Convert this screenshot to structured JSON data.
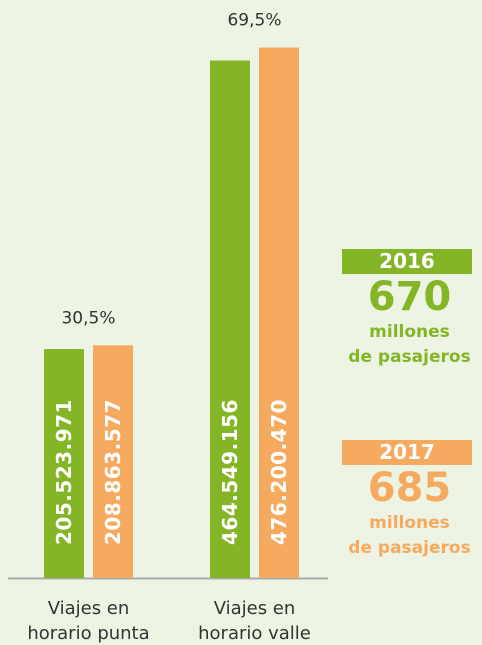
{
  "chart_data": {
    "type": "bar",
    "categories": [
      "Viajes en horario punta",
      "Viajes en horario valle"
    ],
    "group_labels": [
      "30,5%",
      "69,5%"
    ],
    "series": [
      {
        "name": "2016",
        "color": "#84b526",
        "values": [
          205523971,
          464549156
        ],
        "value_labels": [
          "205.523.971",
          "464.549.156"
        ],
        "total": 670,
        "total_label": [
          "millones",
          "de pasajeros"
        ]
      },
      {
        "name": "2017",
        "color": "#f5aa5f",
        "values": [
          208863577,
          476200470
        ],
        "value_labels": [
          "208.863.577",
          "476.200.470"
        ],
        "total": 685,
        "total_label": [
          "millones",
          "de pasajeros"
        ]
      }
    ],
    "ylim": [
      0,
      500000000
    ]
  }
}
